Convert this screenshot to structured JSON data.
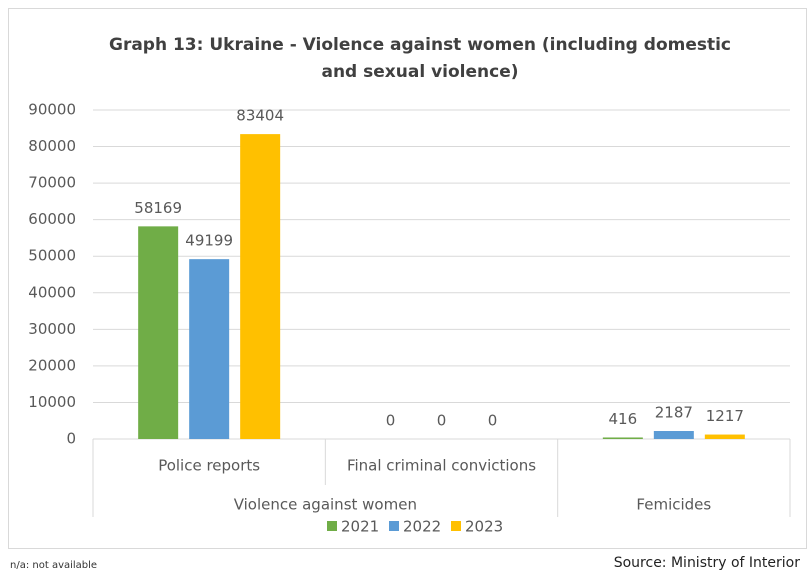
{
  "chart_data": {
    "type": "bar",
    "title": [
      "Graph 13: Ukraine - Violence against women (including domestic",
      "and sexual violence)"
    ],
    "groups": [
      {
        "label": "Violence against women",
        "categories": [
          "Police reports",
          "Final criminal convictions"
        ]
      },
      {
        "label": "Femicides",
        "categories": [
          null
        ]
      }
    ],
    "series": [
      {
        "name": "2021",
        "color": "#70ad47",
        "values": [
          58169,
          0,
          416
        ]
      },
      {
        "name": "2022",
        "color": "#5b9bd5",
        "values": [
          49199,
          0,
          2187
        ]
      },
      {
        "name": "2023",
        "color": "#ffc000",
        "values": [
          83404,
          0,
          1217
        ]
      }
    ],
    "ylim": [
      0,
      90000
    ],
    "yticks": [
      0,
      10000,
      20000,
      30000,
      40000,
      50000,
      60000,
      70000,
      80000,
      90000
    ],
    "grid": true,
    "legend": "bottom",
    "note": "n/a: not available",
    "source": "Source: Ministry of Interior"
  }
}
